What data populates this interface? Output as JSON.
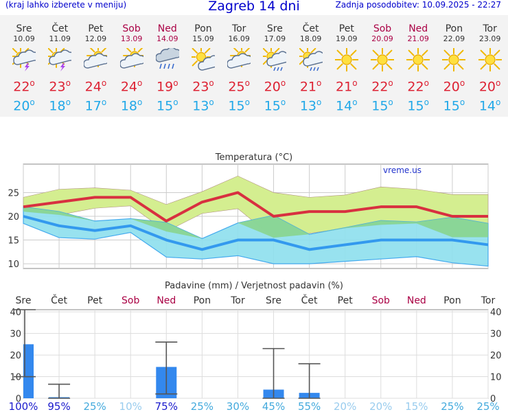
{
  "header": {
    "menu_hint": "(kraj lahko izberete v meniju)",
    "title": "Zagreb 14 dni",
    "updated": "Zadnja posodobitev: 10.09.2025 - 22:27"
  },
  "days": [
    {
      "name": "Sre",
      "date": "10.09",
      "weekend": false,
      "icon": "sun-cloud-thunder-icon",
      "tmax": "22",
      "tmin": "20"
    },
    {
      "name": "Čet",
      "date": "11.09",
      "weekend": false,
      "icon": "sun-cloud-thunder-icon",
      "tmax": "23",
      "tmin": "18"
    },
    {
      "name": "Pet",
      "date": "12.09",
      "weekend": false,
      "icon": "sun-cloud-icon",
      "tmax": "24",
      "tmin": "17"
    },
    {
      "name": "Sob",
      "date": "13.09",
      "weekend": true,
      "icon": "sun-cloud-icon",
      "tmax": "24",
      "tmin": "18"
    },
    {
      "name": "Ned",
      "date": "14.09",
      "weekend": true,
      "icon": "cloud-rain-icon",
      "tmax": "19",
      "tmin": "15"
    },
    {
      "name": "Pon",
      "date": "15.09",
      "weekend": false,
      "icon": "sun-small-cloud-icon",
      "tmax": "23",
      "tmin": "13"
    },
    {
      "name": "Tor",
      "date": "16.09",
      "weekend": false,
      "icon": "sun-cloud-icon",
      "tmax": "25",
      "tmin": "15"
    },
    {
      "name": "Sre",
      "date": "17.09",
      "weekend": false,
      "icon": "sun-cloud-rain-icon",
      "tmax": "20",
      "tmin": "15"
    },
    {
      "name": "Čet",
      "date": "18.09",
      "weekend": false,
      "icon": "sun-cloud-rain-icon",
      "tmax": "21",
      "tmin": "13"
    },
    {
      "name": "Pet",
      "date": "19.09",
      "weekend": false,
      "icon": "sun-icon",
      "tmax": "21",
      "tmin": "14"
    },
    {
      "name": "Sob",
      "date": "20.09",
      "weekend": true,
      "icon": "sun-icon",
      "tmax": "22",
      "tmin": "15"
    },
    {
      "name": "Ned",
      "date": "21.09",
      "weekend": true,
      "icon": "sun-icon",
      "tmax": "22",
      "tmin": "15"
    },
    {
      "name": "Pon",
      "date": "22.09",
      "weekend": false,
      "icon": "sun-icon",
      "tmax": "20",
      "tmin": "15"
    },
    {
      "name": "Tor",
      "date": "23.09",
      "weekend": false,
      "icon": "sun-icon",
      "tmax": "20",
      "tmin": "14"
    }
  ],
  "colors": {
    "title_blue": "#0000cc",
    "weekend": "#aa0044",
    "weekday": "#333333",
    "max_line": "#d83040",
    "min_line": "#3399ee",
    "max_band": "#d4ee90",
    "min_band": "#8fe0ee",
    "overlap_band": "#88d488",
    "precip_bar": "#3388ee",
    "grid": "#cccccc"
  },
  "chart_data": [
    {
      "type": "line",
      "title": "Temperatura (°C)",
      "watermark": "vreme.us",
      "categories": [
        "Sre",
        "Čet",
        "Pet",
        "Sob",
        "Ned",
        "Pon",
        "Tor",
        "Sre",
        "Čet",
        "Pet",
        "Sob",
        "Ned",
        "Pon",
        "Tor"
      ],
      "ylim": [
        9,
        31
      ],
      "yticks": [
        10,
        15,
        20,
        25
      ],
      "series": [
        {
          "key": "max",
          "values": [
            22,
            23,
            24,
            24,
            19,
            23,
            25,
            20,
            21,
            21,
            22,
            22,
            20,
            20
          ]
        },
        {
          "key": "max_band_upper",
          "values": [
            24,
            25.7,
            26,
            25.5,
            22.5,
            25.2,
            28.5,
            25,
            24,
            24.5,
            26.2,
            25.7,
            24.6,
            24.6
          ]
        },
        {
          "key": "max_band_lower",
          "values": [
            21,
            20.3,
            21.7,
            22.2,
            16.8,
            20.6,
            21.6,
            15.5,
            16.4,
            17.5,
            18.2,
            18.5,
            15.6,
            15.6
          ]
        },
        {
          "key": "min",
          "values": [
            20,
            18,
            17,
            18,
            15,
            13,
            15,
            15,
            13,
            14,
            15,
            15,
            15,
            14
          ]
        },
        {
          "key": "min_band_upper",
          "values": [
            22,
            21,
            19,
            19.5,
            18.7,
            15.3,
            18.6,
            20.2,
            16.2,
            17.6,
            19.1,
            18.8,
            19.8,
            18.5
          ]
        },
        {
          "key": "min_band_lower",
          "values": [
            18.5,
            15.5,
            15.2,
            16.6,
            11.4,
            11,
            11.7,
            10,
            10,
            10.5,
            11,
            11.5,
            10.2,
            9.5
          ]
        }
      ]
    },
    {
      "type": "bar",
      "title": "Padavine (mm) / Verjetnost padavin (%)",
      "categories": [
        "Sre",
        "Čet",
        "Pet",
        "Sob",
        "Ned",
        "Pon",
        "Tor",
        "Sre",
        "Čet",
        "Pet",
        "Sob",
        "Ned",
        "Pon",
        "Tor"
      ],
      "ylim": [
        0,
        41
      ],
      "yticks": [
        0,
        10,
        20,
        30,
        40
      ],
      "values": [
        25,
        0.5,
        0,
        0,
        14.5,
        0,
        0,
        4,
        2.5,
        0,
        0,
        0,
        0,
        0
      ],
      "ranges": [
        [
          10,
          41
        ],
        [
          0,
          6.5
        ],
        null,
        null,
        [
          2,
          26
        ],
        null,
        null,
        [
          0,
          23
        ],
        [
          0,
          16
        ],
        null,
        null,
        null,
        null,
        null
      ],
      "probabilities": [
        "100%",
        "95%",
        "25%",
        "10%",
        "75%",
        "25%",
        "30%",
        "45%",
        "55%",
        "20%",
        "20%",
        "15%",
        "25%",
        "25%"
      ],
      "probability_colors": [
        "#1a1acc",
        "#1a1acc",
        "#44aadd",
        "#99ccee",
        "#1a1acc",
        "#44aadd",
        "#44aadd",
        "#44aadd",
        "#44aadd",
        "#99ccee",
        "#99ccee",
        "#99ccee",
        "#44aadd",
        "#44aadd"
      ]
    }
  ]
}
